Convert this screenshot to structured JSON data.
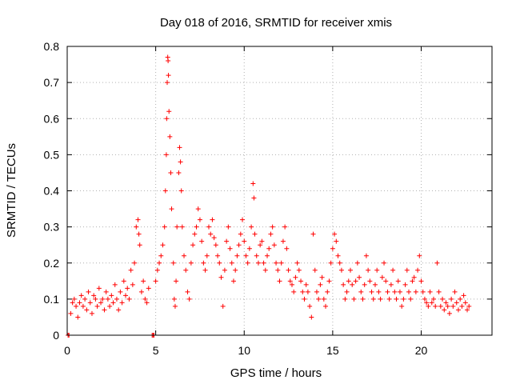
{
  "chart_data": {
    "type": "scatter",
    "title": "Day 018 of 2016, SRMTID for receiver xmis",
    "xlabel": "GPS time / hours",
    "ylabel": "SRMTID / TECUs",
    "xlim": [
      0,
      24
    ],
    "ylim": [
      0,
      0.8
    ],
    "x_ticks": [
      0,
      5,
      10,
      15,
      20
    ],
    "x_tick_labels": [
      "0",
      "5",
      "10",
      "15",
      "20"
    ],
    "y_ticks": [
      0,
      0.1,
      0.2,
      0.3,
      0.4,
      0.5,
      0.6,
      0.7,
      0.8
    ],
    "y_tick_labels": [
      "0",
      "0.1",
      "0.2",
      "0.3",
      "0.4",
      "0.5",
      "0.6",
      "0.7",
      "0.8"
    ],
    "grid": true,
    "marker": "plus",
    "color": "#ff0000",
    "series": [
      {
        "name": "SRMTID",
        "points": [
          [
            0.05,
            0.0
          ],
          [
            0.1,
            0.0
          ],
          [
            4.8,
            0.0
          ],
          [
            4.85,
            0.0
          ],
          [
            4.9,
            0.0
          ],
          [
            0.2,
            0.06
          ],
          [
            0.3,
            0.09
          ],
          [
            0.4,
            0.1
          ],
          [
            0.5,
            0.08
          ],
          [
            0.6,
            0.05
          ],
          [
            0.7,
            0.09
          ],
          [
            0.8,
            0.11
          ],
          [
            0.9,
            0.08
          ],
          [
            1.0,
            0.1
          ],
          [
            1.1,
            0.07
          ],
          [
            1.2,
            0.12
          ],
          [
            1.3,
            0.09
          ],
          [
            1.4,
            0.06
          ],
          [
            1.5,
            0.11
          ],
          [
            1.6,
            0.1
          ],
          [
            1.7,
            0.08
          ],
          [
            1.8,
            0.13
          ],
          [
            1.9,
            0.09
          ],
          [
            2.0,
            0.1
          ],
          [
            2.1,
            0.07
          ],
          [
            2.2,
            0.12
          ],
          [
            2.3,
            0.1
          ],
          [
            2.4,
            0.08
          ],
          [
            2.5,
            0.11
          ],
          [
            2.6,
            0.09
          ],
          [
            2.7,
            0.14
          ],
          [
            2.8,
            0.1
          ],
          [
            2.9,
            0.07
          ],
          [
            3.0,
            0.12
          ],
          [
            3.1,
            0.09
          ],
          [
            3.2,
            0.15
          ],
          [
            3.3,
            0.11
          ],
          [
            3.4,
            0.13
          ],
          [
            3.5,
            0.1
          ],
          [
            3.6,
            0.18
          ],
          [
            3.7,
            0.14
          ],
          [
            3.8,
            0.2
          ],
          [
            3.9,
            0.3
          ],
          [
            4.0,
            0.32
          ],
          [
            4.05,
            0.28
          ],
          [
            4.1,
            0.25
          ],
          [
            4.2,
            0.12
          ],
          [
            4.3,
            0.15
          ],
          [
            4.4,
            0.1
          ],
          [
            4.5,
            0.09
          ],
          [
            4.6,
            0.13
          ],
          [
            5.0,
            0.15
          ],
          [
            5.1,
            0.18
          ],
          [
            5.2,
            0.2
          ],
          [
            5.3,
            0.22
          ],
          [
            5.4,
            0.25
          ],
          [
            5.5,
            0.3
          ],
          [
            5.55,
            0.4
          ],
          [
            5.6,
            0.5
          ],
          [
            5.62,
            0.6
          ],
          [
            5.65,
            0.7
          ],
          [
            5.68,
            0.77
          ],
          [
            5.7,
            0.76
          ],
          [
            5.72,
            0.72
          ],
          [
            5.75,
            0.62
          ],
          [
            5.8,
            0.55
          ],
          [
            5.85,
            0.45
          ],
          [
            5.9,
            0.35
          ],
          [
            6.0,
            0.2
          ],
          [
            6.05,
            0.1
          ],
          [
            6.1,
            0.08
          ],
          [
            6.15,
            0.15
          ],
          [
            6.2,
            0.3
          ],
          [
            6.3,
            0.45
          ],
          [
            6.35,
            0.52
          ],
          [
            6.4,
            0.48
          ],
          [
            6.45,
            0.4
          ],
          [
            6.5,
            0.3
          ],
          [
            6.6,
            0.22
          ],
          [
            6.7,
            0.18
          ],
          [
            6.8,
            0.12
          ],
          [
            6.9,
            0.1
          ],
          [
            7.0,
            0.2
          ],
          [
            7.1,
            0.25
          ],
          [
            7.2,
            0.28
          ],
          [
            7.3,
            0.3
          ],
          [
            7.4,
            0.35
          ],
          [
            7.5,
            0.32
          ],
          [
            7.6,
            0.26
          ],
          [
            7.7,
            0.2
          ],
          [
            7.8,
            0.18
          ],
          [
            7.9,
            0.22
          ],
          [
            8.0,
            0.3
          ],
          [
            8.1,
            0.28
          ],
          [
            8.2,
            0.32
          ],
          [
            8.3,
            0.27
          ],
          [
            8.4,
            0.25
          ],
          [
            8.5,
            0.22
          ],
          [
            8.6,
            0.2
          ],
          [
            8.7,
            0.16
          ],
          [
            8.8,
            0.08
          ],
          [
            8.9,
            0.18
          ],
          [
            9.0,
            0.26
          ],
          [
            9.1,
            0.3
          ],
          [
            9.2,
            0.24
          ],
          [
            9.3,
            0.2
          ],
          [
            9.4,
            0.15
          ],
          [
            9.5,
            0.18
          ],
          [
            9.6,
            0.22
          ],
          [
            9.7,
            0.25
          ],
          [
            9.8,
            0.28
          ],
          [
            9.9,
            0.32
          ],
          [
            10.0,
            0.26
          ],
          [
            10.1,
            0.22
          ],
          [
            10.2,
            0.2
          ],
          [
            10.3,
            0.24
          ],
          [
            10.4,
            0.3
          ],
          [
            10.5,
            0.42
          ],
          [
            10.55,
            0.38
          ],
          [
            10.6,
            0.28
          ],
          [
            10.7,
            0.22
          ],
          [
            10.8,
            0.2
          ],
          [
            10.9,
            0.25
          ],
          [
            11.0,
            0.26
          ],
          [
            11.1,
            0.2
          ],
          [
            11.2,
            0.18
          ],
          [
            11.3,
            0.22
          ],
          [
            11.4,
            0.24
          ],
          [
            11.5,
            0.28
          ],
          [
            11.6,
            0.3
          ],
          [
            11.7,
            0.25
          ],
          [
            11.8,
            0.2
          ],
          [
            11.9,
            0.18
          ],
          [
            12.0,
            0.15
          ],
          [
            12.1,
            0.2
          ],
          [
            12.2,
            0.26
          ],
          [
            12.3,
            0.3
          ],
          [
            12.4,
            0.24
          ],
          [
            12.5,
            0.18
          ],
          [
            12.6,
            0.15
          ],
          [
            12.7,
            0.14
          ],
          [
            12.8,
            0.12
          ],
          [
            12.9,
            0.16
          ],
          [
            13.0,
            0.2
          ],
          [
            13.1,
            0.18
          ],
          [
            13.2,
            0.15
          ],
          [
            13.3,
            0.12
          ],
          [
            13.4,
            0.1
          ],
          [
            13.5,
            0.14
          ],
          [
            13.6,
            0.12
          ],
          [
            13.7,
            0.08
          ],
          [
            13.8,
            0.05
          ],
          [
            13.9,
            0.28
          ],
          [
            14.0,
            0.18
          ],
          [
            14.1,
            0.12
          ],
          [
            14.2,
            0.1
          ],
          [
            14.3,
            0.14
          ],
          [
            14.4,
            0.16
          ],
          [
            14.5,
            0.1
          ],
          [
            14.6,
            0.08
          ],
          [
            14.7,
            0.12
          ],
          [
            14.8,
            0.15
          ],
          [
            14.9,
            0.2
          ],
          [
            15.0,
            0.24
          ],
          [
            15.1,
            0.28
          ],
          [
            15.2,
            0.26
          ],
          [
            15.3,
            0.22
          ],
          [
            15.4,
            0.2
          ],
          [
            15.5,
            0.18
          ],
          [
            15.6,
            0.14
          ],
          [
            15.7,
            0.1
          ],
          [
            15.8,
            0.12
          ],
          [
            15.9,
            0.15
          ],
          [
            16.0,
            0.18
          ],
          [
            16.1,
            0.14
          ],
          [
            16.2,
            0.1
          ],
          [
            16.3,
            0.15
          ],
          [
            16.4,
            0.2
          ],
          [
            16.5,
            0.16
          ],
          [
            16.6,
            0.12
          ],
          [
            16.7,
            0.1
          ],
          [
            16.8,
            0.14
          ],
          [
            16.9,
            0.22
          ],
          [
            17.0,
            0.18
          ],
          [
            17.1,
            0.15
          ],
          [
            17.2,
            0.12
          ],
          [
            17.3,
            0.1
          ],
          [
            17.4,
            0.14
          ],
          [
            17.5,
            0.18
          ],
          [
            17.6,
            0.12
          ],
          [
            17.7,
            0.1
          ],
          [
            17.8,
            0.16
          ],
          [
            17.9,
            0.2
          ],
          [
            18.0,
            0.15
          ],
          [
            18.1,
            0.12
          ],
          [
            18.2,
            0.1
          ],
          [
            18.3,
            0.14
          ],
          [
            18.4,
            0.18
          ],
          [
            18.5,
            0.12
          ],
          [
            18.6,
            0.1
          ],
          [
            18.7,
            0.15
          ],
          [
            18.8,
            0.12
          ],
          [
            18.9,
            0.08
          ],
          [
            19.0,
            0.1
          ],
          [
            19.1,
            0.14
          ],
          [
            19.2,
            0.18
          ],
          [
            19.3,
            0.12
          ],
          [
            19.4,
            0.1
          ],
          [
            19.5,
            0.15
          ],
          [
            19.6,
            0.16
          ],
          [
            19.7,
            0.12
          ],
          [
            19.8,
            0.18
          ],
          [
            19.9,
            0.22
          ],
          [
            20.0,
            0.15
          ],
          [
            20.1,
            0.12
          ],
          [
            20.2,
            0.1
          ],
          [
            20.3,
            0.09
          ],
          [
            20.4,
            0.08
          ],
          [
            20.5,
            0.12
          ],
          [
            20.6,
            0.09
          ],
          [
            20.7,
            0.1
          ],
          [
            20.8,
            0.08
          ],
          [
            20.9,
            0.2
          ],
          [
            21.0,
            0.12
          ],
          [
            21.1,
            0.08
          ],
          [
            21.2,
            0.1
          ],
          [
            21.3,
            0.07
          ],
          [
            21.4,
            0.09
          ],
          [
            21.5,
            0.08
          ],
          [
            21.6,
            0.06
          ],
          [
            21.7,
            0.1
          ],
          [
            21.8,
            0.08
          ],
          [
            21.9,
            0.12
          ],
          [
            22.0,
            0.09
          ],
          [
            22.1,
            0.07
          ],
          [
            22.2,
            0.1
          ],
          [
            22.3,
            0.08
          ],
          [
            22.4,
            0.11
          ],
          [
            22.5,
            0.09
          ],
          [
            22.6,
            0.07
          ],
          [
            22.7,
            0.08
          ]
        ]
      }
    ]
  }
}
